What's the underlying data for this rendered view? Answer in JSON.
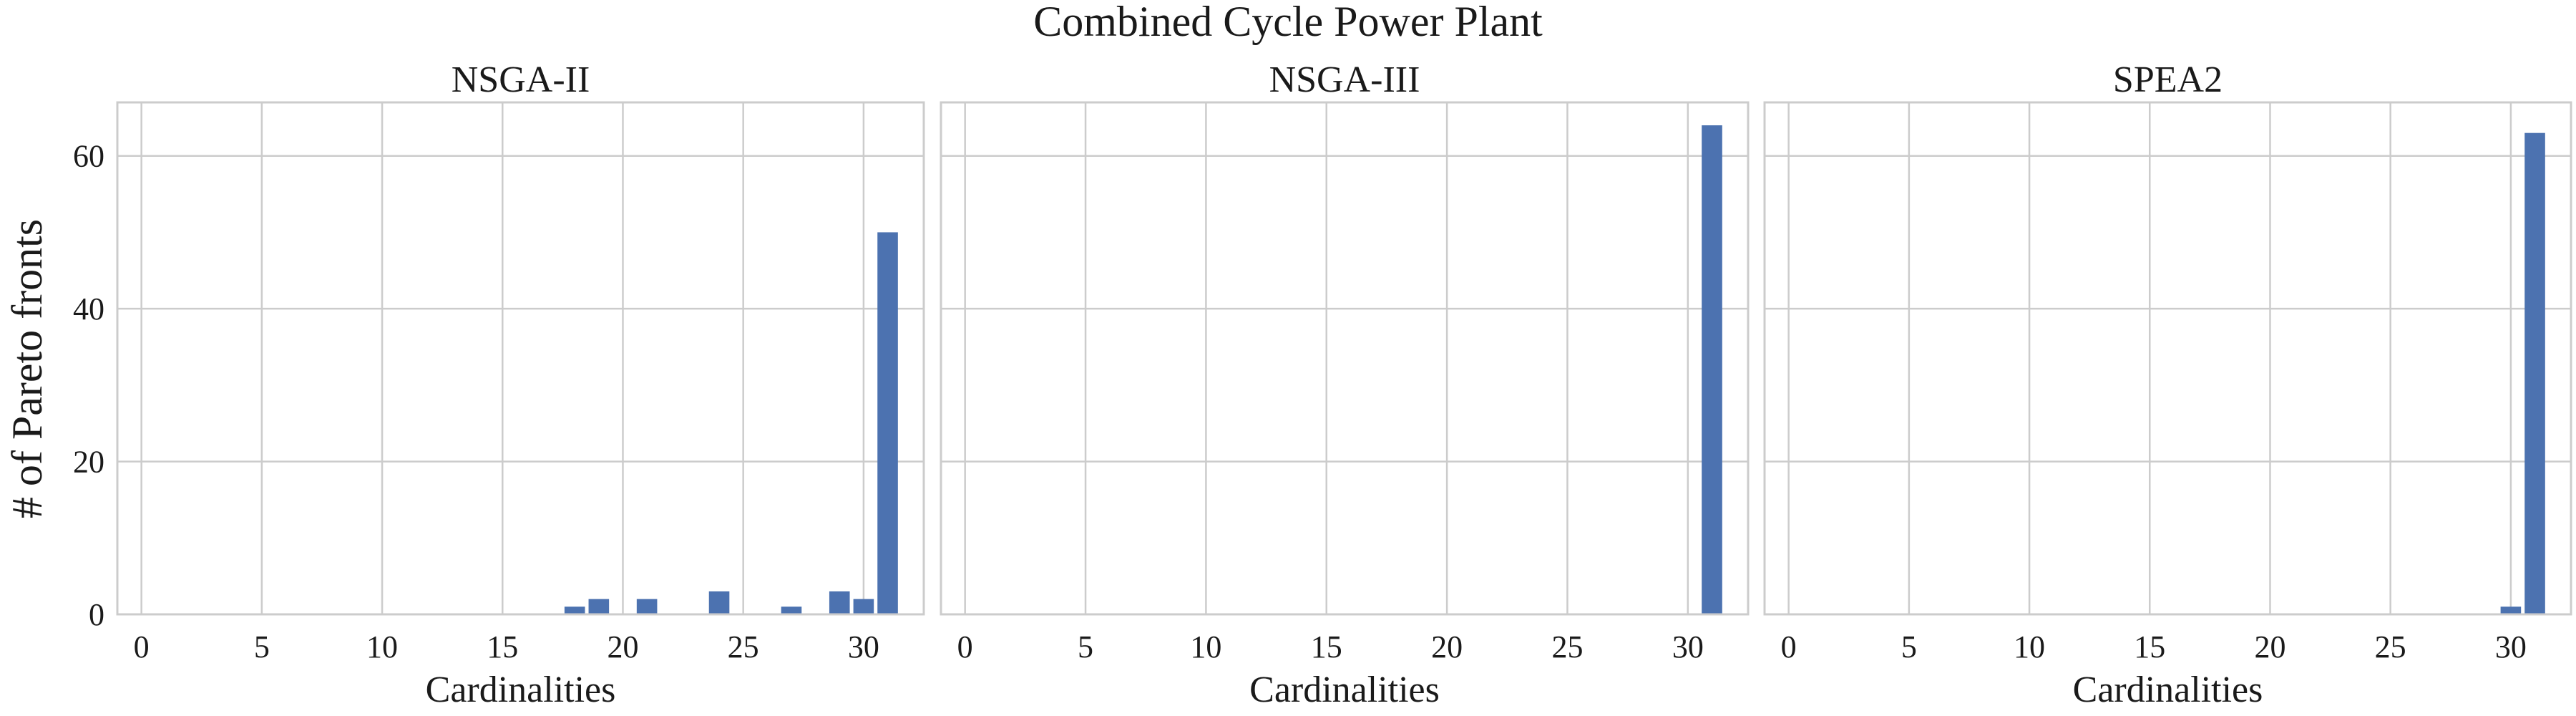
{
  "figure": {
    "title": "Combined Cycle Power Plant",
    "ylabel": "# of Pareto fronts"
  },
  "chart_data": [
    {
      "type": "bar",
      "title": "NSGA-II",
      "xlabel": "Cardinalities",
      "ylabel": "# of Pareto fronts",
      "xlim": [
        -1,
        32.5
      ],
      "ylim": [
        0,
        67
      ],
      "xticks": [
        0,
        5,
        10,
        15,
        20,
        25,
        30
      ],
      "yticks": [
        0,
        20,
        40,
        60
      ],
      "grid": true,
      "color": "#4c72b0",
      "x": [
        18,
        19,
        21,
        24,
        27,
        29,
        30,
        31
      ],
      "values": [
        1,
        2,
        2,
        3,
        1,
        3,
        2,
        50
      ]
    },
    {
      "type": "bar",
      "title": "NSGA-III",
      "xlabel": "Cardinalities",
      "ylabel": "# of Pareto fronts",
      "xlim": [
        -1,
        32.5
      ],
      "ylim": [
        0,
        67
      ],
      "xticks": [
        0,
        5,
        10,
        15,
        20,
        25,
        30
      ],
      "yticks": [
        0,
        20,
        40,
        60
      ],
      "grid": true,
      "color": "#4c72b0",
      "x": [
        31
      ],
      "values": [
        64
      ]
    },
    {
      "type": "bar",
      "title": "SPEA2",
      "xlabel": "Cardinalities",
      "ylabel": "# of Pareto fronts",
      "xlim": [
        -1,
        32.5
      ],
      "ylim": [
        0,
        67
      ],
      "xticks": [
        0,
        5,
        10,
        15,
        20,
        25,
        30
      ],
      "yticks": [
        0,
        20,
        40,
        60
      ],
      "grid": true,
      "color": "#4c72b0",
      "x": [
        30,
        31
      ],
      "values": [
        1,
        63
      ]
    }
  ]
}
